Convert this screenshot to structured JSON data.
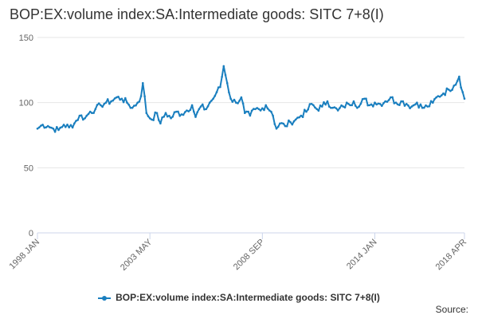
{
  "title": "BOP:EX:volume index:SA:Intermediate goods: SITC 7+8(I)",
  "source_label": "Source:",
  "chart_data": {
    "type": "line",
    "title": "BOP:EX:volume index:SA:Intermediate goods: SITC 7+8(I)",
    "xlabel": "",
    "ylabel": "",
    "ylim": [
      0,
      150
    ],
    "yticks": [
      0,
      50,
      100,
      150
    ],
    "xticks": [
      "1998 JAN",
      "2003 MAY",
      "2008 SEP",
      "2014 JAN",
      "2018 APR"
    ],
    "xtick_index": [
      0,
      64,
      128,
      192,
      243
    ],
    "grid": true,
    "legend_position": "bottom",
    "series": [
      {
        "name": "BOP:EX:volume index:SA:Intermediate goods: SITC 7+8(I)",
        "color": "#1a7fbf",
        "x_start": "1998 JAN",
        "x_end": "2018 APR",
        "anchors": [
          [
            0,
            80
          ],
          [
            3,
            83
          ],
          [
            6,
            82
          ],
          [
            9,
            80
          ],
          [
            12,
            79
          ],
          [
            15,
            83
          ],
          [
            18,
            81
          ],
          [
            21,
            84
          ],
          [
            24,
            90
          ],
          [
            27,
            88
          ],
          [
            30,
            93
          ],
          [
            33,
            95
          ],
          [
            36,
            98
          ],
          [
            39,
            100
          ],
          [
            42,
            101
          ],
          [
            45,
            104
          ],
          [
            48,
            103
          ],
          [
            51,
            100
          ],
          [
            54,
            96
          ],
          [
            57,
            100
          ],
          [
            59,
            105
          ],
          [
            60,
            115
          ],
          [
            62,
            92
          ],
          [
            65,
            87
          ],
          [
            68,
            92
          ],
          [
            70,
            84
          ],
          [
            73,
            92
          ],
          [
            76,
            88
          ],
          [
            79,
            93
          ],
          [
            82,
            91
          ],
          [
            85,
            94
          ],
          [
            88,
            98
          ],
          [
            90,
            89
          ],
          [
            93,
            97
          ],
          [
            96,
            95
          ],
          [
            98,
            100
          ],
          [
            100,
            103
          ],
          [
            102,
            108
          ],
          [
            104,
            112
          ],
          [
            106,
            128
          ],
          [
            108,
            115
          ],
          [
            110,
            103
          ],
          [
            113,
            100
          ],
          [
            116,
            104
          ],
          [
            118,
            92
          ],
          [
            121,
            90
          ],
          [
            124,
            95
          ],
          [
            127,
            94
          ],
          [
            130,
            98
          ],
          [
            133,
            93
          ],
          [
            134,
            90
          ],
          [
            136,
            80
          ],
          [
            138,
            84
          ],
          [
            141,
            82
          ],
          [
            144,
            85
          ],
          [
            147,
            87
          ],
          [
            150,
            90
          ],
          [
            153,
            93
          ],
          [
            156,
            99
          ],
          [
            159,
            95
          ],
          [
            162,
            97
          ],
          [
            165,
            101
          ],
          [
            168,
            96
          ],
          [
            171,
            94
          ],
          [
            174,
            97
          ],
          [
            177,
            99
          ],
          [
            180,
            101
          ],
          [
            183,
            97
          ],
          [
            186,
            103
          ],
          [
            189,
            98
          ],
          [
            192,
            100
          ],
          [
            195,
            99
          ],
          [
            198,
            101
          ],
          [
            201,
            104
          ],
          [
            204,
            100
          ],
          [
            207,
            101
          ],
          [
            210,
            99
          ],
          [
            213,
            97
          ],
          [
            216,
            100
          ],
          [
            219,
            96
          ],
          [
            222,
            97
          ],
          [
            225,
            100
          ],
          [
            228,
            105
          ],
          [
            231,
            107
          ],
          [
            234,
            110
          ],
          [
            237,
            113
          ],
          [
            240,
            120
          ],
          [
            242,
            108
          ],
          [
            243,
            103
          ]
        ]
      }
    ]
  }
}
